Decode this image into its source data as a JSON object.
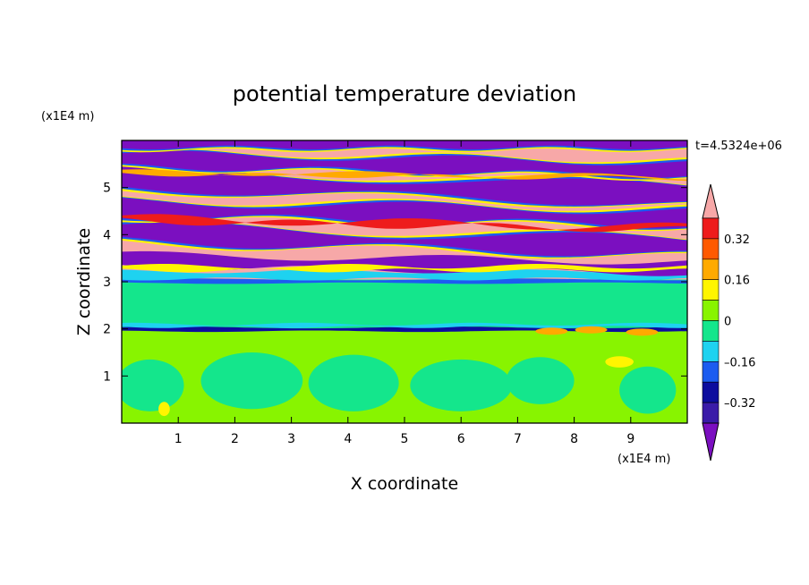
{
  "chart_data": {
    "type": "heatmap",
    "title": "potential temperature deviation",
    "time_label": "t=4.5324e+06",
    "xlabel": "X coordinate",
    "ylabel": "Z coordinate",
    "x_unit": "(x1E4 m)",
    "y_unit": "(x1E4 m)",
    "xlim": [
      0,
      10
    ],
    "ylim": [
      0,
      6
    ],
    "x_ticks": [
      "1",
      "2",
      "3",
      "4",
      "5",
      "6",
      "7",
      "8",
      "9"
    ],
    "y_ticks": [
      "1",
      "2",
      "3",
      "4",
      "5"
    ],
    "colorbar": {
      "tick_labels": [
        "0.32",
        "0.16",
        "0",
        "–0.16",
        "–0.32"
      ],
      "tick_values": [
        0.32,
        0.16,
        0,
        -0.16,
        -0.32
      ],
      "levels": [
        -0.4,
        -0.32,
        -0.24,
        -0.16,
        -0.08,
        0,
        0.08,
        0.16,
        0.24,
        0.32,
        0.4
      ],
      "colors": [
        "#7b0fc0",
        "#3a1ba8",
        "#0d0d9e",
        "#1c5cf0",
        "#1ed2f0",
        "#14e68c",
        "#88f400",
        "#fff500",
        "#ffaa00",
        "#ff5a00",
        "#ee1c1c",
        "#f7a8a8"
      ],
      "extend": "both"
    },
    "regions": [
      {
        "layer": "lower",
        "z_range": [
          0,
          2
        ],
        "dominant_values": [
          "0 to 0.08",
          "0.08 to 0.16"
        ]
      },
      {
        "layer": "middle",
        "z_range": [
          2,
          3
        ],
        "dominant_values": [
          "0 to 0.08"
        ]
      },
      {
        "layer": "upper",
        "z_range": [
          3,
          6
        ],
        "dominant_values": [
          "> 0.4",
          "< -0.4"
        ]
      }
    ]
  }
}
